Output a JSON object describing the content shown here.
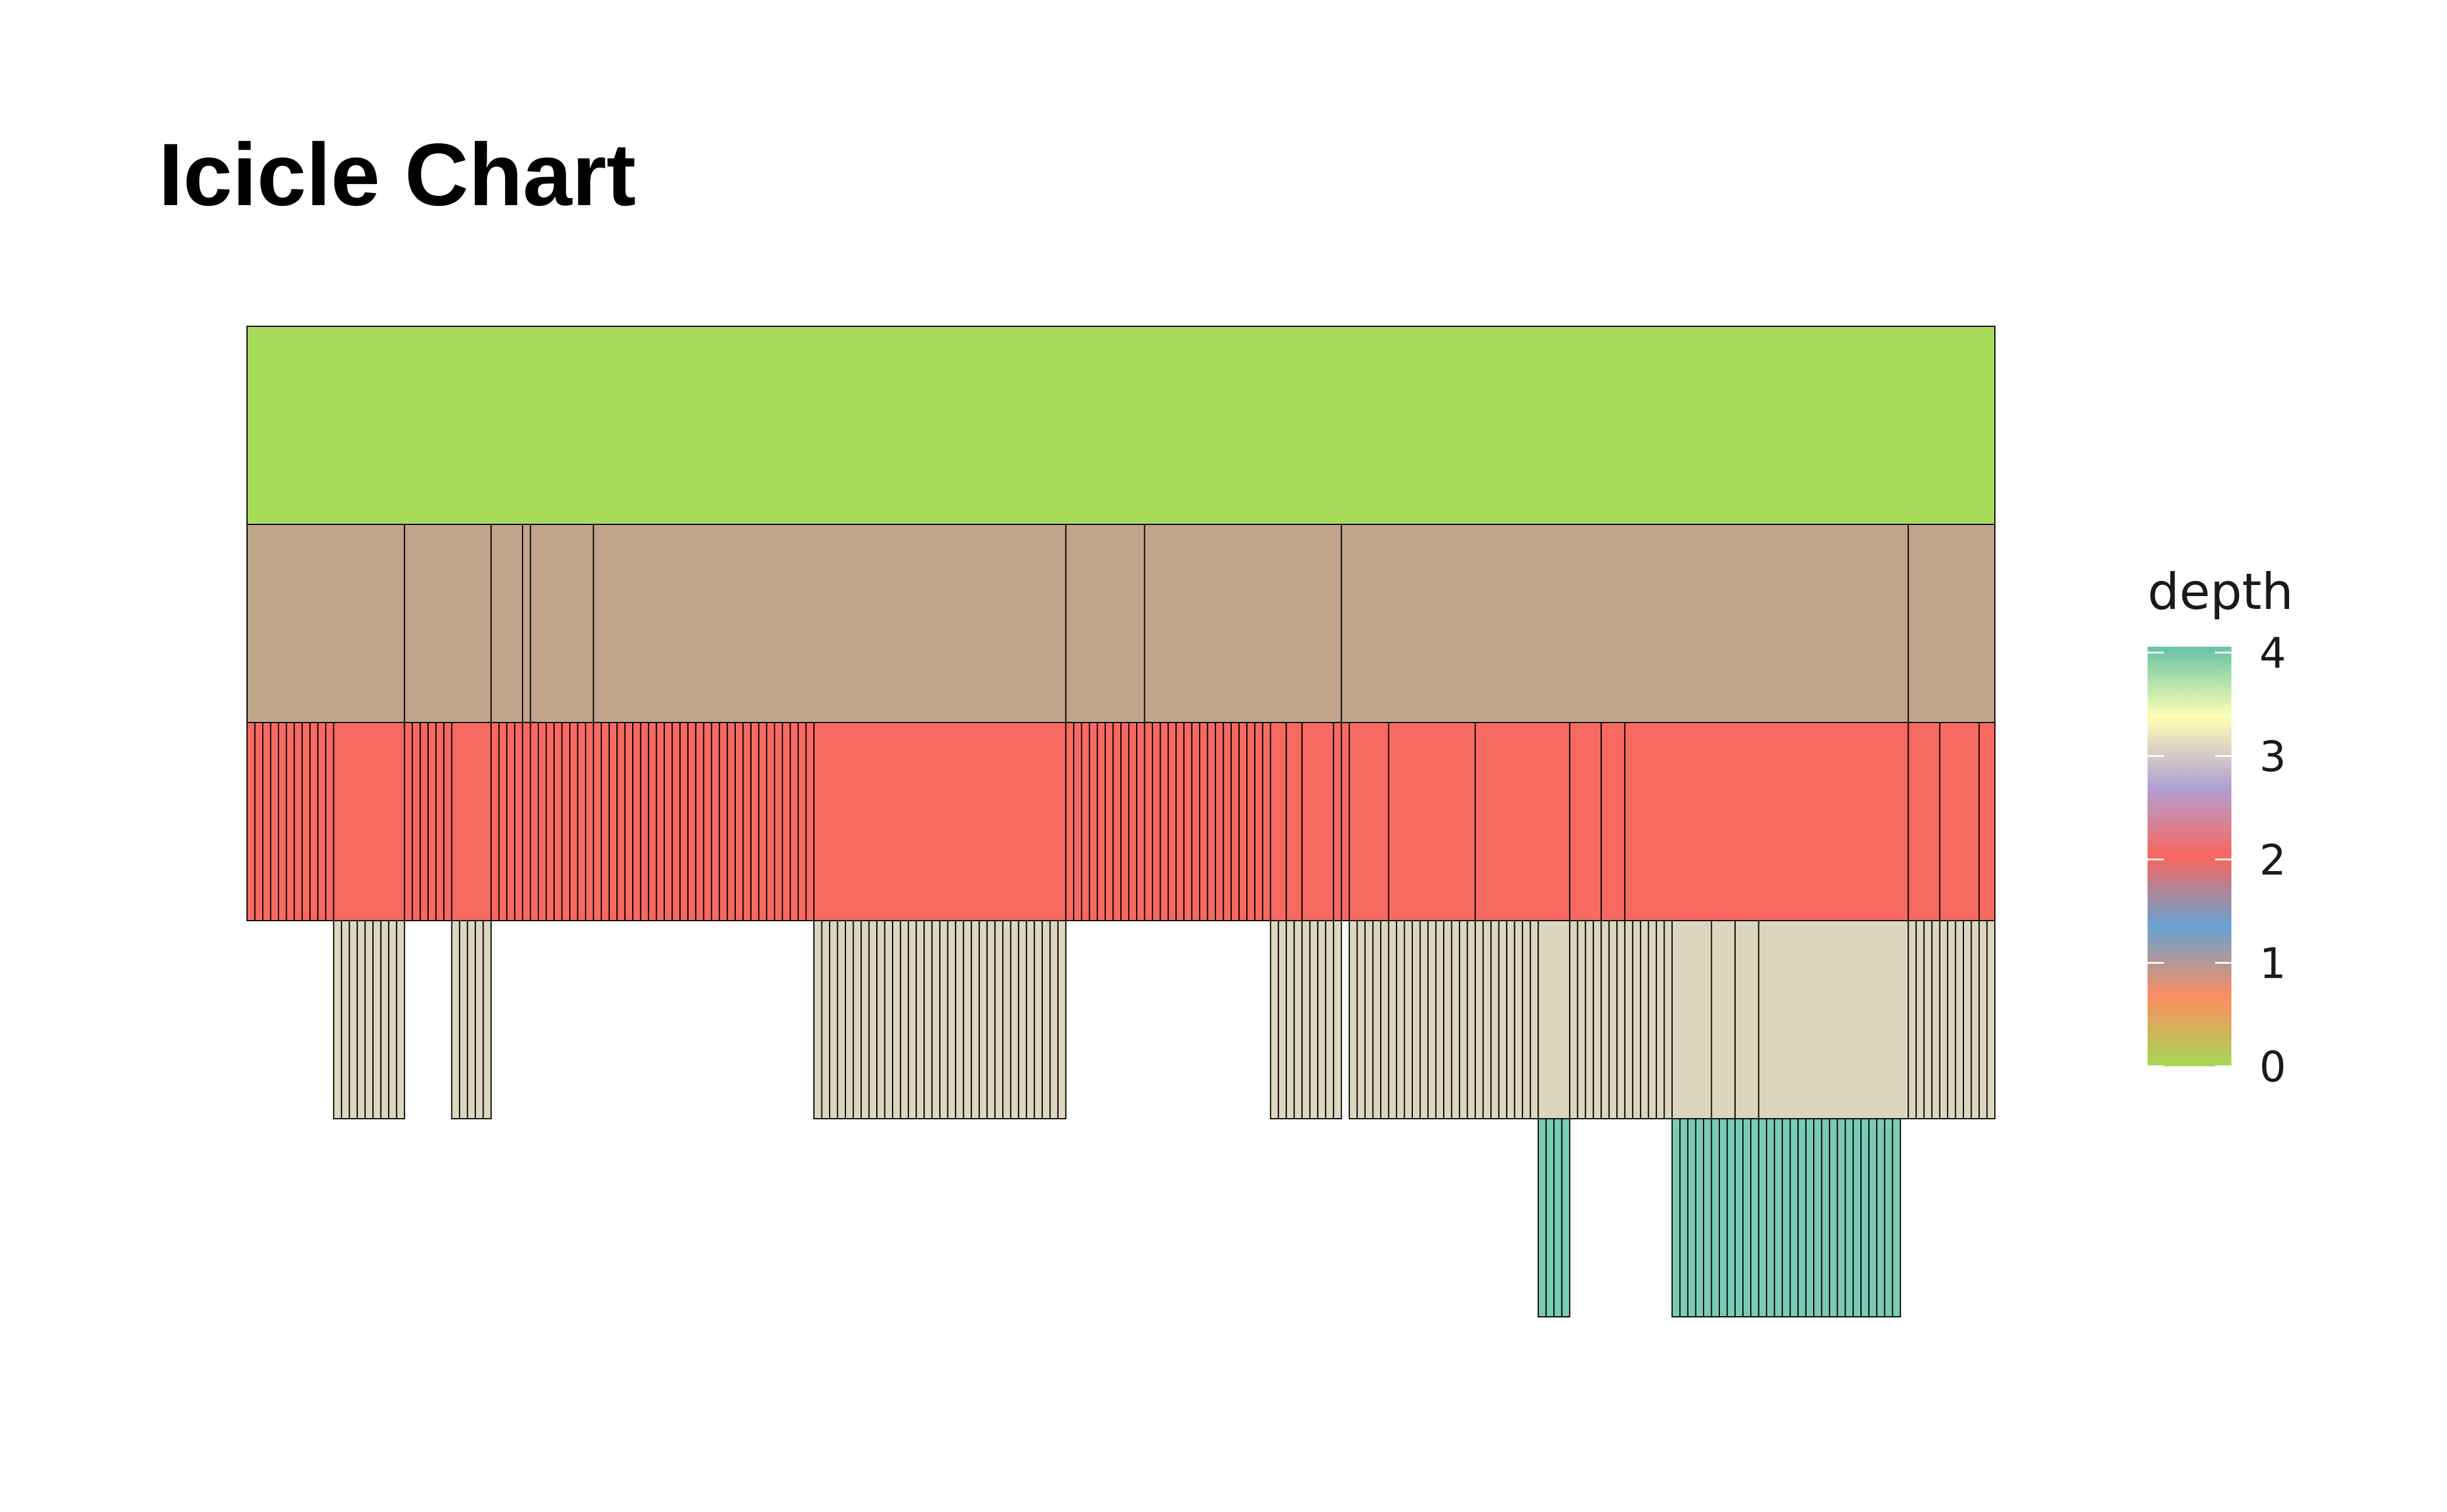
{
  "chart_data": {
    "type": "icicle",
    "title": "Icicle Chart",
    "fill_variable": "depth",
    "legend": {
      "title": "depth",
      "position": "right",
      "range": [
        0,
        4
      ],
      "ticks": [
        "0",
        "1",
        "2",
        "3",
        "4"
      ],
      "gradient_stops": [
        "#a6d854",
        "#fc8d62",
        "#66a3d2",
        "#f8665e",
        "#b0a1d4",
        "#ffffb3",
        "#66c2a5"
      ]
    },
    "depth_colors": [
      "#a6dc5a",
      "#c0a58a",
      "#f86961",
      "#dbd6bd",
      "#7acbb3"
    ],
    "outline_color": "#000000",
    "x_range": [
      0,
      222
    ],
    "levels": [
      {
        "depth": 0,
        "runs": [
          [
            0,
            222,
            1
          ]
        ]
      },
      {
        "depth": 1,
        "runs": [
          [
            0,
            20,
            1
          ],
          [
            20,
            11,
            1
          ],
          [
            31,
            4,
            1
          ],
          [
            35,
            1,
            1
          ],
          [
            36,
            8,
            1
          ],
          [
            44,
            60,
            1
          ],
          [
            104,
            10,
            1
          ],
          [
            114,
            25,
            1
          ],
          [
            139,
            72,
            1
          ],
          [
            211,
            11,
            1
          ]
        ]
      },
      {
        "depth": 2,
        "runs": [
          [
            0,
            1,
            11
          ],
          [
            11,
            9,
            1
          ],
          [
            20,
            1,
            6
          ],
          [
            26,
            5,
            1
          ],
          [
            31,
            1,
            41
          ],
          [
            72,
            32,
            1
          ],
          [
            104,
            1,
            26
          ],
          [
            130,
            2,
            2
          ],
          [
            134,
            4,
            1
          ],
          [
            138,
            1,
            1
          ],
          [
            139,
            1,
            1
          ],
          [
            140,
            5,
            1
          ],
          [
            145,
            11,
            1
          ],
          [
            156,
            12,
            1
          ],
          [
            168,
            4,
            1
          ],
          [
            172,
            3,
            1
          ],
          [
            175,
            36,
            1
          ],
          [
            211,
            4,
            1
          ],
          [
            215,
            5,
            1
          ],
          [
            220,
            2,
            1
          ]
        ]
      },
      {
        "depth": 3,
        "runs": [
          [
            11,
            1,
            9
          ],
          [
            26,
            1,
            5
          ],
          [
            72,
            1,
            32
          ],
          [
            130,
            1,
            9
          ],
          [
            140,
            1,
            24
          ],
          [
            164,
            4,
            1
          ],
          [
            168,
            1,
            13
          ],
          [
            181,
            5,
            1
          ],
          [
            186,
            3,
            1
          ],
          [
            189,
            3,
            1
          ],
          [
            192,
            19,
            1
          ],
          [
            211,
            1,
            11
          ]
        ]
      },
      {
        "depth": 4,
        "runs": [
          [
            164,
            1,
            4
          ],
          [
            181,
            1,
            29
          ]
        ]
      }
    ]
  }
}
